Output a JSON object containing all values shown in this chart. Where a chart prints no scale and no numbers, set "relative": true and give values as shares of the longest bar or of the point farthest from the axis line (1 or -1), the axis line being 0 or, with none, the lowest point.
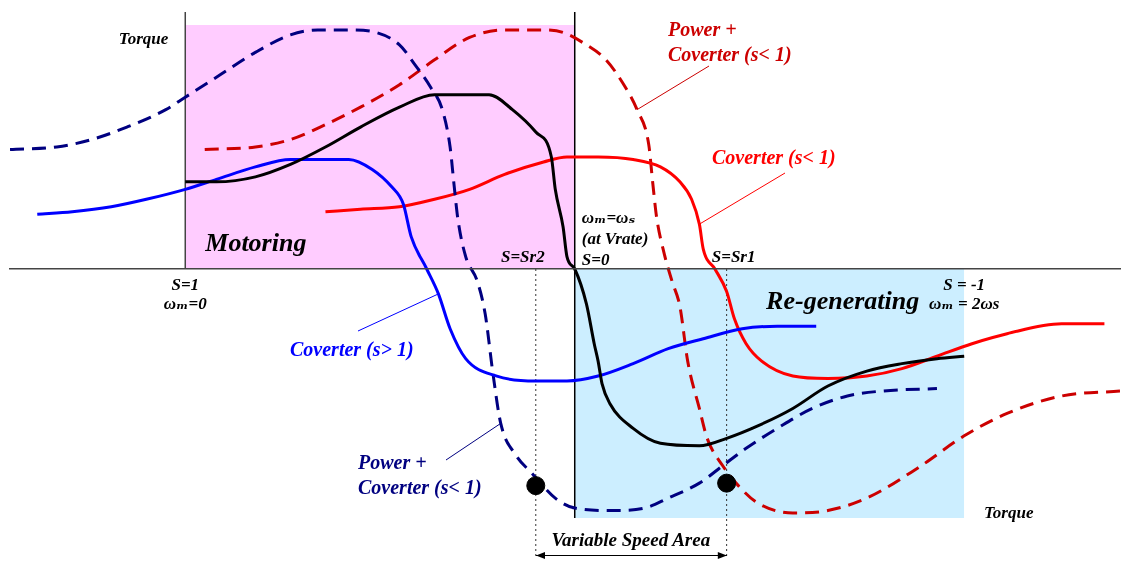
{
  "chart_data": {
    "type": "line",
    "ylabel": "Torque",
    "relative": true,
    "grid": false,
    "marker": "none",
    "xlim": [
      1.45,
      -1.4
    ],
    "xticks": [
      {
        "value": 1,
        "label": "S=1"
      },
      {
        "value": -1,
        "label": "S = -1"
      }
    ],
    "annotations": [
      "Variable Speed Area",
      "Torque",
      "ωₘ=0",
      "ωₘ = 2ωs"
    ],
    "ref_lines": [
      {
        "axis": "x",
        "value": 0,
        "label": "ωₘ=ωₛ (at Vrate)\nS=0",
        "color": "#000000",
        "line_style": "solid"
      },
      {
        "axis": "x",
        "value": 0.1,
        "label": "S=Sr2",
        "color": "#333333",
        "line_style": "dotted"
      },
      {
        "axis": "x",
        "value": -0.39,
        "label": "S=Sr1",
        "color": "#333333",
        "line_style": "dotted"
      }
    ],
    "series": [
      {
        "type": "area",
        "name": "Motoring",
        "color": "#ffccff",
        "x": [
          1,
          0
        ],
        "values": [
          0.98,
          0.98
        ]
      },
      {
        "type": "area",
        "name": "Re-generating",
        "color": "#cceeff",
        "x": [
          0,
          -1
        ],
        "values": [
          -1,
          -1
        ]
      },
      {
        "color": "#000000",
        "line_style": "solid",
        "x": [
          1,
          0.92,
          0.82,
          0.73,
          0.64,
          0.55,
          0.45,
          0.36,
          0.29,
          0.22,
          0.16,
          0.1,
          0.06,
          0.05,
          0.03,
          0.02,
          0,
          -0.03,
          -0.05,
          -0.06,
          -0.07,
          -0.09,
          -0.15,
          -0.22,
          -0.32,
          -0.39,
          -0.47,
          -0.56,
          -0.65,
          -0.75,
          -0.84,
          -0.93,
          -1.0
        ],
        "values": [
          0.35,
          0.35,
          0.37,
          0.42,
          0.49,
          0.57,
          0.65,
          0.7,
          0.7,
          0.7,
          0.64,
          0.55,
          0.45,
          0.32,
          0.17,
          0.05,
          0,
          -0.14,
          -0.3,
          -0.37,
          -0.46,
          -0.54,
          -0.64,
          -0.7,
          -0.71,
          -0.68,
          -0.63,
          -0.56,
          -0.47,
          -0.41,
          -0.38,
          -0.36,
          -0.35
        ]
      },
      {
        "name": "Coverter (s> 1)",
        "color": "#0000ff",
        "line_style": "solid",
        "x": [
          1.38,
          1.29,
          1.19,
          1.1,
          1,
          0.92,
          0.82,
          0.73,
          0.64,
          0.58,
          0.52,
          0.47,
          0.44,
          0.42,
          0.38,
          0.35,
          0.32,
          0.28,
          0.2,
          0.1,
          0.02,
          -0.06,
          -0.15,
          -0.24,
          -0.33,
          -0.43,
          -0.52,
          -0.62
        ],
        "values": [
          0.22,
          0.23,
          0.25,
          0.28,
          0.32,
          0.36,
          0.41,
          0.44,
          0.44,
          0.44,
          0.4,
          0.33,
          0.26,
          0.13,
          0,
          -0.1,
          -0.24,
          -0.36,
          -0.43,
          -0.45,
          -0.45,
          -0.43,
          -0.38,
          -0.32,
          -0.28,
          -0.24,
          -0.23,
          -0.23
        ]
      },
      {
        "name": "Power + Coverter (s< 1)",
        "color": "#000080",
        "line_style": "dashed",
        "x": [
          1.45,
          1.33,
          1.24,
          1.15,
          1.05,
          1,
          0.92,
          0.82,
          0.73,
          0.66,
          0.58,
          0.51,
          0.45,
          0.41,
          0.37,
          0.34,
          0.32,
          0.31,
          0.3,
          0.28,
          0.25,
          0.23,
          0.21,
          0.19,
          0.15,
          0.11,
          0.05,
          0,
          -0.1,
          -0.18,
          -0.24,
          -0.32,
          -0.38,
          -0.44,
          -0.52,
          -0.61,
          -0.7,
          -0.79,
          -0.93
        ],
        "values": [
          0.48,
          0.49,
          0.52,
          0.57,
          0.64,
          0.69,
          0.77,
          0.87,
          0.94,
          0.96,
          0.96,
          0.95,
          0.9,
          0.82,
          0.73,
          0.64,
          0.49,
          0.34,
          0.2,
          0.05,
          -0.05,
          -0.18,
          -0.42,
          -0.62,
          -0.75,
          -0.82,
          -0.92,
          -0.96,
          -0.97,
          -0.96,
          -0.92,
          -0.86,
          -0.79,
          -0.72,
          -0.64,
          -0.56,
          -0.51,
          -0.49,
          -0.48
        ]
      },
      {
        "name": "Coverter (s< 1)",
        "color": "#ff0000",
        "line_style": "solid",
        "x": [
          0.64,
          0.55,
          0.45,
          0.36,
          0.27,
          0.18,
          0.08,
          0.02,
          -0.06,
          -0.15,
          -0.22,
          -0.27,
          -0.3,
          -0.32,
          -0.33,
          -0.36,
          -0.39,
          -0.41,
          -0.44,
          -0.48,
          -0.56,
          -0.65,
          -0.75,
          -0.84,
          -0.93,
          -1.02,
          -1.11,
          -1.25,
          -1.36
        ],
        "values": [
          0.23,
          0.24,
          0.25,
          0.28,
          0.32,
          0.38,
          0.43,
          0.45,
          0.45,
          0.44,
          0.41,
          0.35,
          0.28,
          0.18,
          0.08,
          0,
          -0.09,
          -0.2,
          -0.3,
          -0.37,
          -0.43,
          -0.44,
          -0.43,
          -0.4,
          -0.35,
          -0.3,
          -0.26,
          -0.22,
          -0.22
        ]
      },
      {
        "name": "Power + Coverter (s< 1)",
        "color": "#cc0000",
        "line_style": "dashed",
        "x": [
          0.95,
          0.82,
          0.73,
          0.64,
          0.55,
          0.45,
          0.36,
          0.27,
          0.18,
          0.08,
          0.03,
          -0.02,
          -0.08,
          -0.13,
          -0.16,
          -0.19,
          -0.2,
          -0.21,
          -0.23,
          -0.25,
          -0.27,
          -0.29,
          -0.32,
          -0.34,
          -0.38,
          -0.42,
          -0.47,
          -0.56,
          -0.65,
          -0.75,
          -0.88,
          -1.0,
          -1.11,
          -1.25,
          -1.4
        ],
        "values": [
          0.48,
          0.49,
          0.52,
          0.58,
          0.65,
          0.74,
          0.84,
          0.93,
          0.96,
          0.96,
          0.95,
          0.91,
          0.84,
          0.73,
          0.64,
          0.5,
          0.35,
          0.21,
          0.06,
          -0.05,
          -0.15,
          -0.37,
          -0.56,
          -0.68,
          -0.79,
          -0.87,
          -0.94,
          -0.98,
          -0.97,
          -0.92,
          -0.8,
          -0.67,
          -0.58,
          -0.51,
          -0.49
        ]
      },
      {
        "type": "scatter",
        "color": "#000000",
        "marker": "circle",
        "x": [
          0.1,
          -0.39
        ],
        "values": [
          -0.87,
          -0.86
        ]
      }
    ]
  }
}
